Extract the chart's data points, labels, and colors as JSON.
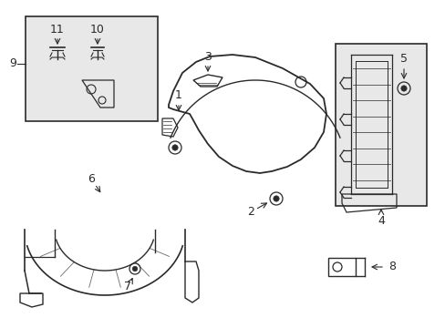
{
  "bg_color": "#ffffff",
  "line_color": "#2a2a2a",
  "box_bg": "#e8e8e8",
  "figsize": [
    4.89,
    3.6
  ],
  "dpi": 100
}
